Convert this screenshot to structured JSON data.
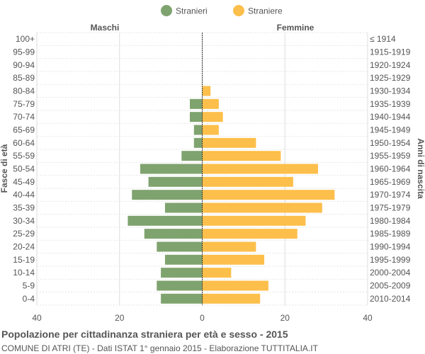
{
  "footer": {
    "title": "Popolazione per cittadinanza straniera per età e sesso - 2015",
    "subtitle": "COMUNE DI ATRI (TE) - Dati ISTAT 1° gennaio 2015 - Elaborazione TUTTITALIA.IT"
  },
  "colors": {
    "male": "#7fa36f",
    "female": "#fdbf4b",
    "grid": "#dddddd",
    "text": "#555555",
    "axis": "#333333"
  },
  "chart_data": {
    "type": "bar",
    "orientation": "horizontal",
    "subtype": "population-pyramid",
    "legend": {
      "placement": "top-center",
      "entries": [
        "Stranieri",
        "Straniere"
      ]
    },
    "left_header": "Maschi",
    "right_header": "Femmine",
    "ylabel_left": "Fasce di età",
    "ylabel_right": "Anni di nascita",
    "xlim": [
      -40,
      40
    ],
    "xticks": [
      {
        "value": -40,
        "label": "40"
      },
      {
        "value": -20,
        "label": "20"
      },
      {
        "value": 0,
        "label": "0"
      },
      {
        "value": 20,
        "label": "20"
      },
      {
        "value": 40,
        "label": "40"
      }
    ],
    "grid": true,
    "categories": [
      "100+",
      "95-99",
      "90-94",
      "85-89",
      "80-84",
      "75-79",
      "70-74",
      "65-69",
      "60-64",
      "55-59",
      "50-54",
      "45-49",
      "40-44",
      "35-39",
      "30-34",
      "25-29",
      "20-24",
      "15-19",
      "10-14",
      "5-9",
      "0-4"
    ],
    "birth_years": [
      "≤ 1914",
      "1915-1919",
      "1920-1924",
      "1925-1929",
      "1930-1934",
      "1935-1939",
      "1940-1944",
      "1945-1949",
      "1950-1954",
      "1955-1959",
      "1960-1964",
      "1965-1969",
      "1970-1974",
      "1975-1979",
      "1980-1984",
      "1985-1989",
      "1990-1994",
      "1995-1999",
      "2000-2004",
      "2005-2009",
      "2010-2014"
    ],
    "series": [
      {
        "name": "Stranieri",
        "values": [
          0,
          0,
          0,
          0,
          0,
          3,
          3,
          2,
          2,
          5,
          15,
          13,
          17,
          9,
          18,
          14,
          11,
          9,
          10,
          11,
          10
        ]
      },
      {
        "name": "Straniere",
        "values": [
          0,
          0,
          0,
          0,
          2,
          4,
          5,
          4,
          13,
          19,
          28,
          22,
          32,
          29,
          25,
          23,
          13,
          15,
          7,
          16,
          14
        ]
      }
    ]
  }
}
